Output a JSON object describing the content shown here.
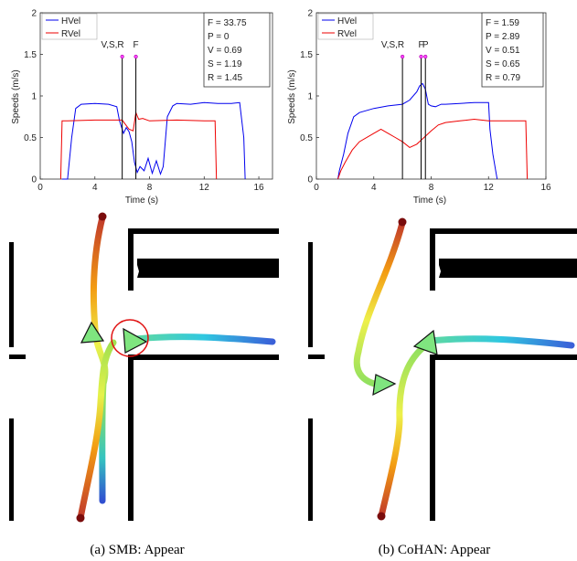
{
  "chart_data": [
    {
      "type": "line",
      "xlabel": "Time (s)",
      "ylabel": "Speeds (m/s)",
      "xlim": [
        0,
        17
      ],
      "ylim": [
        0,
        2
      ],
      "xticks": [
        "0",
        "4",
        "8",
        "12",
        "16"
      ],
      "yticks": [
        "0",
        "0.5",
        "1",
        "1.5",
        "2"
      ],
      "legend_position": "top-left",
      "grid": false,
      "series": [
        {
          "name": "HVel",
          "color": "#0000ee",
          "x": [
            1.6,
            2.0,
            2.3,
            2.6,
            3.0,
            4.0,
            5.0,
            5.6,
            5.8,
            6.1,
            6.3,
            6.5,
            6.7,
            6.9,
            7.1,
            7.3,
            7.6,
            7.9,
            8.2,
            8.5,
            8.8,
            9.0,
            9.3,
            9.7,
            10.0,
            11.0,
            12.0,
            13.0,
            14.0,
            14.6,
            14.9,
            15.0
          ],
          "y": [
            0,
            0,
            0.5,
            0.85,
            0.9,
            0.91,
            0.9,
            0.87,
            0.7,
            0.55,
            0.62,
            0.57,
            0.45,
            0.2,
            0.08,
            0.15,
            0.1,
            0.25,
            0.07,
            0.22,
            0.06,
            0.15,
            0.75,
            0.88,
            0.91,
            0.9,
            0.92,
            0.91,
            0.91,
            0.92,
            0.5,
            0
          ]
        },
        {
          "name": "RVel",
          "color": "#ee0000",
          "x": [
            1.5,
            1.6,
            2.0,
            4.0,
            6.0,
            6.5,
            6.8,
            7.0,
            7.2,
            7.5,
            8.0,
            10.0,
            12.0,
            12.8,
            12.9
          ],
          "y": [
            0,
            0.7,
            0.7,
            0.71,
            0.71,
            0.6,
            0.58,
            0.8,
            0.72,
            0.73,
            0.7,
            0.71,
            0.7,
            0.7,
            0
          ]
        }
      ],
      "events": [
        {
          "label": "V,S,R",
          "x": 6.0
        },
        {
          "label": "F",
          "x": 7.0
        }
      ],
      "annotation_lines": [
        "F = 33.75",
        "P = 0",
        "V = 0.69",
        "S = 1.19",
        "R = 1.45"
      ]
    },
    {
      "type": "line",
      "xlabel": "Time (s)",
      "ylabel": "Speeds (m/s)",
      "xlim": [
        0,
        16
      ],
      "ylim": [
        0,
        2
      ],
      "xticks": [
        "0",
        "4",
        "8",
        "12",
        "16"
      ],
      "yticks": [
        "0",
        "0.5",
        "1",
        "1.5",
        "2"
      ],
      "legend_position": "top-left",
      "grid": false,
      "series": [
        {
          "name": "HVel",
          "color": "#0000ee",
          "x": [
            1.5,
            1.6,
            1.9,
            2.2,
            2.6,
            3.0,
            4.0,
            5.0,
            6.0,
            6.5,
            7.0,
            7.2,
            7.4,
            7.6,
            7.8,
            8.0,
            8.3,
            8.7,
            9.0,
            10.0,
            11.0,
            12.0,
            12.1,
            12.3,
            12.5,
            12.6
          ],
          "y": [
            0,
            0.1,
            0.3,
            0.55,
            0.75,
            0.8,
            0.85,
            0.88,
            0.9,
            0.95,
            1.05,
            1.12,
            1.15,
            1.08,
            0.9,
            0.88,
            0.87,
            0.9,
            0.9,
            0.91,
            0.92,
            0.92,
            0.6,
            0.3,
            0.1,
            0
          ]
        },
        {
          "name": "RVel",
          "color": "#ee0000",
          "x": [
            1.5,
            1.7,
            2.0,
            2.5,
            3.0,
            4.0,
            4.5,
            5.0,
            5.5,
            6.0,
            6.5,
            7.0,
            7.5,
            8.0,
            8.5,
            9.0,
            10.0,
            11.0,
            12.0,
            13.0,
            14.0,
            14.6,
            14.7
          ],
          "y": [
            0,
            0.1,
            0.2,
            0.35,
            0.45,
            0.55,
            0.6,
            0.55,
            0.5,
            0.45,
            0.38,
            0.42,
            0.5,
            0.58,
            0.65,
            0.68,
            0.7,
            0.72,
            0.7,
            0.7,
            0.7,
            0.7,
            0
          ]
        }
      ],
      "events": [
        {
          "label": "V,S,R",
          "x": 6.0
        },
        {
          "label": "F",
          "x": 7.3
        },
        {
          "label": "P",
          "x": 7.6
        }
      ],
      "annotation_lines": [
        "F = 1.59",
        "P = 2.89",
        "V = 0.51",
        "S = 0.65",
        "R = 0.79"
      ]
    }
  ],
  "captions": [
    "(a) SMB: Appear",
    "(b) CoHAN: Appear"
  ],
  "map_icons": [
    "robot-path-icon",
    "human-path-icon",
    "human-triangle-icon",
    "robot-triangle-icon",
    "conflict-circle-icon"
  ],
  "colors": {
    "wall": "#000000",
    "path_start": "#8b0000",
    "path_mid": "#ffff33",
    "path_end": "#2a4fd6",
    "triangle": "#7fe57f",
    "conflict": "#e01010"
  }
}
